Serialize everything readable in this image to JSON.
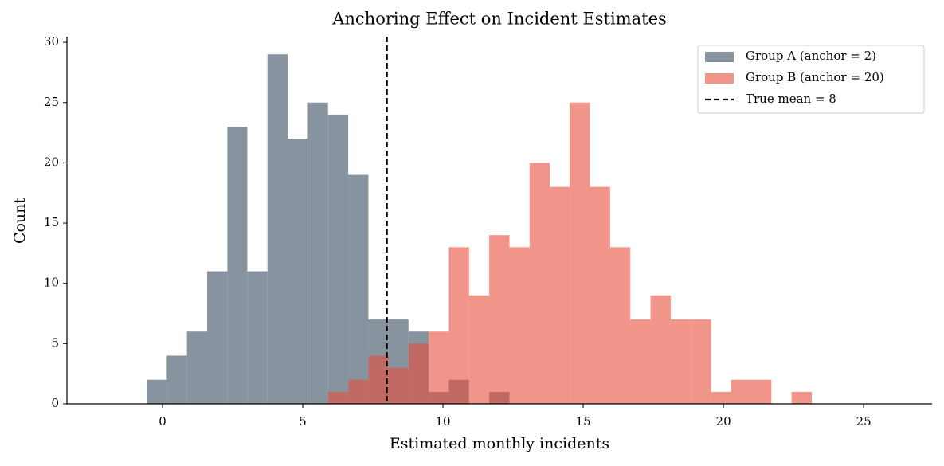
{
  "chart_data": {
    "type": "histogram",
    "title": "Anchoring Effect on Incident Estimates",
    "x_label": "Estimated monthly incidents",
    "y_label": "Count",
    "bins": [
      -0.57,
      0.15,
      0.87,
      1.59,
      2.31,
      3.02,
      3.74,
      4.46,
      5.18,
      5.9,
      6.62,
      7.34,
      8.06,
      8.77,
      9.49,
      10.21,
      10.93,
      11.65,
      12.37,
      13.09,
      13.81,
      14.52,
      15.24,
      15.96,
      16.68,
      17.4,
      18.12,
      18.84,
      19.56,
      20.27,
      20.99,
      21.71,
      22.43,
      23.15
    ],
    "series": [
      {
        "name": "Group A (anchor = 2)",
        "color": "#5d6d7e",
        "opacity": 0.74,
        "values": [
          2,
          4,
          6,
          11,
          23,
          11,
          29,
          22,
          25,
          24,
          19,
          7,
          7,
          6,
          1,
          2,
          0,
          1,
          0,
          0,
          0,
          0,
          0,
          0,
          0,
          0,
          0,
          0,
          0,
          0,
          0,
          0,
          0
        ]
      },
      {
        "name": "Group B (anchor = 20)",
        "color": "#e74c3c",
        "opacity": 0.6,
        "values": [
          0,
          0,
          0,
          0,
          0,
          0,
          0,
          0,
          0,
          1,
          2,
          4,
          3,
          5,
          6,
          13,
          9,
          14,
          13,
          20,
          18,
          25,
          18,
          13,
          7,
          9,
          7,
          7,
          1,
          2,
          2,
          0,
          1
        ]
      }
    ],
    "reference_line": {
      "x": 8,
      "label": "True mean = 8",
      "color": "#000000"
    },
    "xlim": [
      -3.41,
      27.44
    ],
    "ylim": [
      0,
      30.47
    ],
    "xticks": [
      0,
      5,
      10,
      15,
      20,
      25
    ],
    "yticks": [
      0,
      5,
      10,
      15,
      20,
      25,
      30
    ],
    "legend": "upper right"
  }
}
